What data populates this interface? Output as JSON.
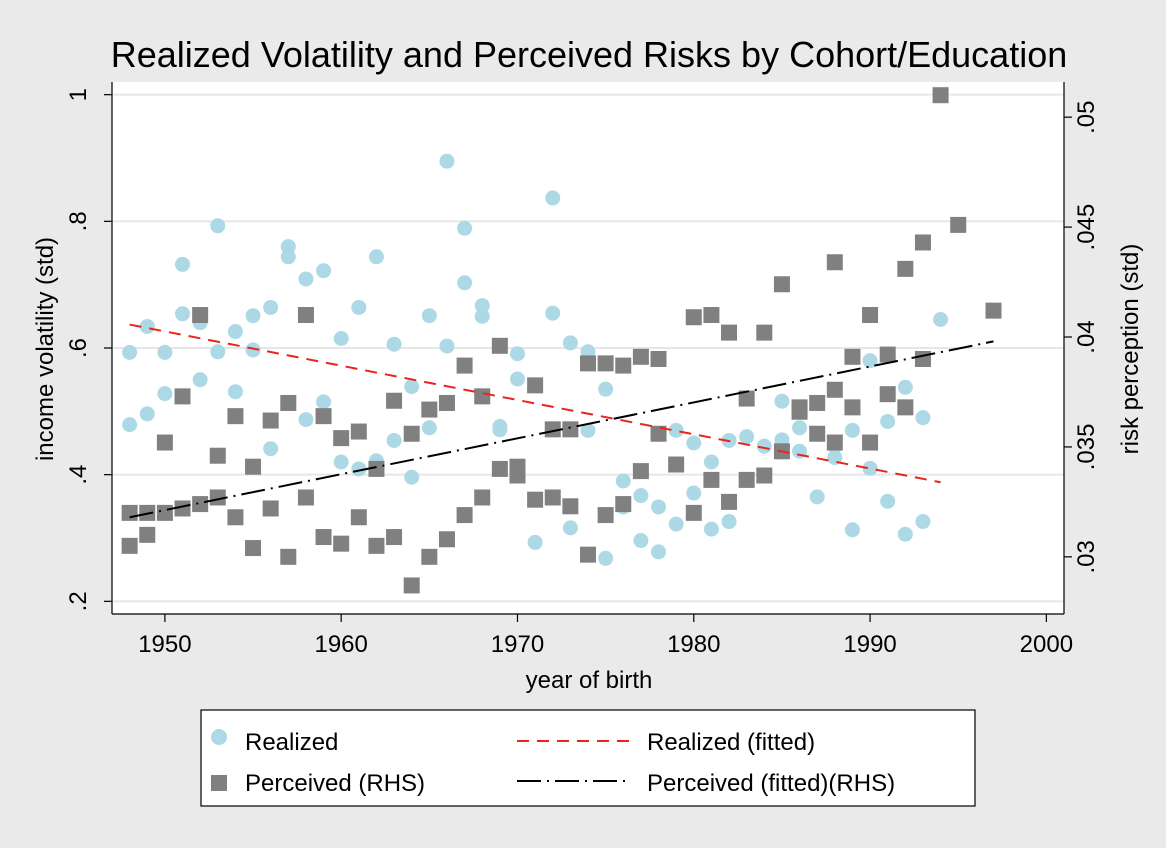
{
  "chart_data": {
    "type": "scatter",
    "title": "Realized Volatility and Perceived Risks by Cohort/Education",
    "xlabel": "year of birth",
    "ylabel_left": "income volatility (std)",
    "ylabel_right": "risk perception (std)",
    "xlim": [
      1947,
      2001
    ],
    "ylim_left": [
      0.18,
      1.02
    ],
    "ylim_right": [
      0.0274,
      0.0516
    ],
    "xticks": [
      1950,
      1960,
      1970,
      1980,
      1990,
      2000
    ],
    "yticks_left": [
      0.2,
      0.4,
      0.6,
      0.8,
      1.0
    ],
    "yticks_left_labels": [
      ".2",
      ".4",
      ".6",
      ".8",
      "1"
    ],
    "yticks_right": [
      0.03,
      0.035,
      0.04,
      0.045,
      0.05
    ],
    "yticks_right_labels": [
      ".03",
      ".035",
      ".04",
      ".045",
      ".05"
    ],
    "grid": true,
    "legend_position": "bottom",
    "colors": {
      "background": "#eaeaea",
      "plot_area": "#ffffff",
      "realized": "#add8e6",
      "perceived": "#808080",
      "realized_fit": "#e8251d",
      "perceived_fit": "#000000",
      "grid": "#e6e6e6"
    },
    "series": [
      {
        "name": "Realized",
        "axis": "left",
        "marker": "circle",
        "points": [
          [
            1948,
            0.593
          ],
          [
            1948,
            0.479
          ],
          [
            1949,
            0.634
          ],
          [
            1949,
            0.496
          ],
          [
            1950,
            0.593
          ],
          [
            1950,
            0.528
          ],
          [
            1951,
            0.732
          ],
          [
            1951,
            0.654
          ],
          [
            1952,
            0.55
          ],
          [
            1952,
            0.64
          ],
          [
            1953,
            0.793
          ],
          [
            1953,
            0.594
          ],
          [
            1954,
            0.626
          ],
          [
            1954,
            0.531
          ],
          [
            1955,
            0.651
          ],
          [
            1955,
            0.597
          ],
          [
            1956,
            0.664
          ],
          [
            1956,
            0.441
          ],
          [
            1957,
            0.76
          ],
          [
            1957,
            0.744
          ],
          [
            1958,
            0.709
          ],
          [
            1958,
            0.487
          ],
          [
            1959,
            0.722
          ],
          [
            1959,
            0.515
          ],
          [
            1960,
            0.615
          ],
          [
            1960,
            0.42
          ],
          [
            1961,
            0.664
          ],
          [
            1961,
            0.409
          ],
          [
            1962,
            0.744
          ],
          [
            1962,
            0.422
          ],
          [
            1963,
            0.606
          ],
          [
            1963,
            0.454
          ],
          [
            1964,
            0.539
          ],
          [
            1964,
            0.396
          ],
          [
            1965,
            0.651
          ],
          [
            1965,
            0.474
          ],
          [
            1966,
            0.895
          ],
          [
            1966,
            0.603
          ],
          [
            1967,
            0.789
          ],
          [
            1967,
            0.703
          ],
          [
            1968,
            0.667
          ],
          [
            1968,
            0.65
          ],
          [
            1969,
            0.476
          ],
          [
            1969,
            0.471
          ],
          [
            1970,
            0.591
          ],
          [
            1970,
            0.551
          ],
          [
            1971,
            0.293
          ],
          [
            1972,
            0.837
          ],
          [
            1972,
            0.655
          ],
          [
            1973,
            0.608
          ],
          [
            1973,
            0.316
          ],
          [
            1974,
            0.594
          ],
          [
            1974,
            0.47
          ],
          [
            1975,
            0.535
          ],
          [
            1975,
            0.268
          ],
          [
            1976,
            0.39
          ],
          [
            1976,
            0.349
          ],
          [
            1977,
            0.367
          ],
          [
            1977,
            0.296
          ],
          [
            1978,
            0.349
          ],
          [
            1978,
            0.278
          ],
          [
            1979,
            0.47
          ],
          [
            1979,
            0.322
          ],
          [
            1980,
            0.45
          ],
          [
            1980,
            0.371
          ],
          [
            1981,
            0.42
          ],
          [
            1981,
            0.314
          ],
          [
            1982,
            0.454
          ],
          [
            1982,
            0.326
          ],
          [
            1983,
            0.46
          ],
          [
            1984,
            0.445
          ],
          [
            1985,
            0.516
          ],
          [
            1985,
            0.455
          ],
          [
            1986,
            0.474
          ],
          [
            1986,
            0.437
          ],
          [
            1987,
            0.365
          ],
          [
            1988,
            0.445
          ],
          [
            1988,
            0.427
          ],
          [
            1989,
            0.47
          ],
          [
            1989,
            0.313
          ],
          [
            1990,
            0.58
          ],
          [
            1990,
            0.41
          ],
          [
            1991,
            0.484
          ],
          [
            1991,
            0.358
          ],
          [
            1992,
            0.538
          ],
          [
            1992,
            0.306
          ],
          [
            1993,
            0.49
          ],
          [
            1993,
            0.326
          ],
          [
            1994,
            0.645
          ]
        ]
      },
      {
        "name": "Perceived (RHS)",
        "axis": "right",
        "marker": "square",
        "points": [
          [
            1948,
            0.032
          ],
          [
            1948,
            0.0305
          ],
          [
            1949,
            0.032
          ],
          [
            1949,
            0.031
          ],
          [
            1950,
            0.0352
          ],
          [
            1950,
            0.032
          ],
          [
            1951,
            0.0373
          ],
          [
            1951,
            0.0322
          ],
          [
            1952,
            0.041
          ],
          [
            1952,
            0.0324
          ],
          [
            1953,
            0.0346
          ],
          [
            1953,
            0.0327
          ],
          [
            1954,
            0.0364
          ],
          [
            1954,
            0.0318
          ],
          [
            1955,
            0.0341
          ],
          [
            1955,
            0.0304
          ],
          [
            1956,
            0.0362
          ],
          [
            1956,
            0.0322
          ],
          [
            1957,
            0.037
          ],
          [
            1957,
            0.03
          ],
          [
            1958,
            0.041
          ],
          [
            1958,
            0.0327
          ],
          [
            1959,
            0.0364
          ],
          [
            1959,
            0.0309
          ],
          [
            1960,
            0.0354
          ],
          [
            1960,
            0.0306
          ],
          [
            1961,
            0.0357
          ],
          [
            1961,
            0.0318
          ],
          [
            1962,
            0.034
          ],
          [
            1962,
            0.0305
          ],
          [
            1963,
            0.0371
          ],
          [
            1963,
            0.0309
          ],
          [
            1964,
            0.0356
          ],
          [
            1964,
            0.0287
          ],
          [
            1965,
            0.0367
          ],
          [
            1965,
            0.03
          ],
          [
            1966,
            0.037
          ],
          [
            1966,
            0.0308
          ],
          [
            1967,
            0.0387
          ],
          [
            1967,
            0.0319
          ],
          [
            1968,
            0.0373
          ],
          [
            1968,
            0.0327
          ],
          [
            1969,
            0.0396
          ],
          [
            1969,
            0.034
          ],
          [
            1970,
            0.0341
          ],
          [
            1970,
            0.0337
          ],
          [
            1971,
            0.0378
          ],
          [
            1971,
            0.0326
          ],
          [
            1972,
            0.0358
          ],
          [
            1972,
            0.0327
          ],
          [
            1973,
            0.0358
          ],
          [
            1973,
            0.0323
          ],
          [
            1974,
            0.0388
          ],
          [
            1974,
            0.0301
          ],
          [
            1975,
            0.0388
          ],
          [
            1975,
            0.0319
          ],
          [
            1976,
            0.0387
          ],
          [
            1976,
            0.0324
          ],
          [
            1977,
            0.0391
          ],
          [
            1977,
            0.0339
          ],
          [
            1978,
            0.039
          ],
          [
            1978,
            0.0356
          ],
          [
            1979,
            0.0342
          ],
          [
            1980,
            0.0409
          ],
          [
            1980,
            0.032
          ],
          [
            1981,
            0.041
          ],
          [
            1981,
            0.0335
          ],
          [
            1982,
            0.0402
          ],
          [
            1982,
            0.0325
          ],
          [
            1983,
            0.0372
          ],
          [
            1983,
            0.0335
          ],
          [
            1984,
            0.0402
          ],
          [
            1984,
            0.0337
          ],
          [
            1985,
            0.0424
          ],
          [
            1985,
            0.0348
          ],
          [
            1986,
            0.0368
          ],
          [
            1986,
            0.0366
          ],
          [
            1987,
            0.037
          ],
          [
            1987,
            0.0356
          ],
          [
            1988,
            0.0434
          ],
          [
            1988,
            0.0376
          ],
          [
            1988,
            0.0352
          ],
          [
            1989,
            0.0391
          ],
          [
            1989,
            0.0368
          ],
          [
            1990,
            0.041
          ],
          [
            1990,
            0.0352
          ],
          [
            1991,
            0.0392
          ],
          [
            1991,
            0.0374
          ],
          [
            1992,
            0.0431
          ],
          [
            1992,
            0.0368
          ],
          [
            1993,
            0.0443
          ],
          [
            1993,
            0.039
          ],
          [
            1994,
            0.051
          ],
          [
            1995,
            0.0451
          ],
          [
            1997,
            0.0412
          ]
        ]
      },
      {
        "name": "Realized (fitted)",
        "axis": "left",
        "line": "dashed",
        "points": [
          [
            1948,
            0.637
          ],
          [
            1994,
            0.388
          ]
        ]
      },
      {
        "name": "Perceived (fitted)(RHS)",
        "axis": "right",
        "line": "dash-dot",
        "points": [
          [
            1948,
            0.0318
          ],
          [
            1997,
            0.0398
          ]
        ]
      }
    ]
  }
}
